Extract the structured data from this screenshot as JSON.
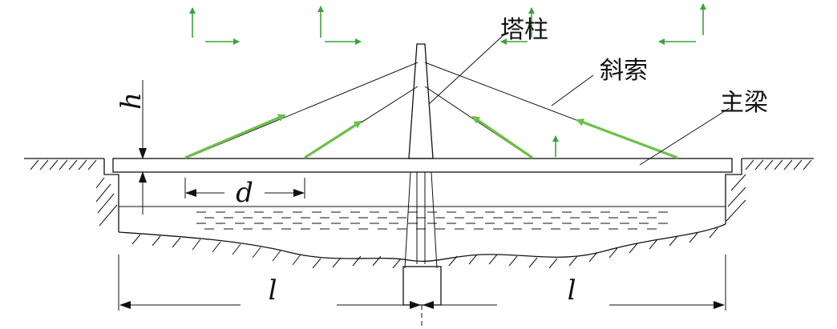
{
  "labels": {
    "tower": "塔柱",
    "cable": "斜索",
    "girder": "主梁",
    "clearance": "h",
    "spacing": "d",
    "span_left": "l",
    "span_right": "l"
  },
  "colors": {
    "line": "#111111",
    "force_arrow": "#6cc04a",
    "axis_arrow": "#3aa43a"
  }
}
